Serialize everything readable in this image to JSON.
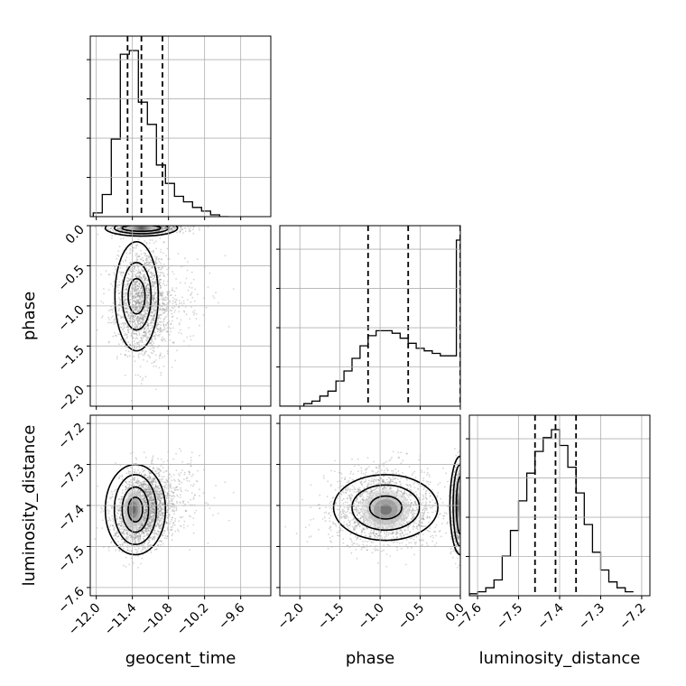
{
  "chart_data": {
    "type": "corner",
    "parameters": [
      "geocent_time",
      "phase",
      "luminosity_distance"
    ],
    "axis_labels": {
      "x": [
        "geocent_time",
        "phase",
        "luminosity_distance"
      ],
      "y": [
        "phase",
        "luminosity_distance"
      ]
    },
    "ranges": {
      "geocent_time": [
        -12.1,
        -9.1
      ],
      "phase": [
        -2.25,
        0.0
      ],
      "luminosity_distance": [
        -7.62,
        -7.18
      ]
    },
    "ticks": {
      "geocent_time": [
        -12.0,
        -11.4,
        -10.8,
        -10.2,
        -9.6
      ],
      "phase": [
        -2.0,
        -1.5,
        -1.0,
        -0.5,
        0.0
      ],
      "luminosity_distance": [
        -7.6,
        -7.5,
        -7.4,
        -7.3,
        -7.2
      ]
    },
    "tick_labels": {
      "geocent_time": [
        "−12.0",
        "−11.4",
        "−10.8",
        "−10.2",
        "−9.6"
      ],
      "phase": [
        "−2.0",
        "−1.5",
        "−1.0",
        "−0.5",
        "0.0"
      ],
      "luminosity_distance": [
        "−7.6",
        "−7.5",
        "−7.4",
        "−7.3",
        "−7.2"
      ]
    },
    "quantiles": {
      "geocent_time": [
        -11.48,
        -11.25,
        -10.9
      ],
      "phase": [
        -1.15,
        -0.65,
        0.0
      ],
      "luminosity_distance": [
        -7.46,
        -7.41,
        -7.36
      ]
    },
    "histograms": {
      "geocent_time": {
        "edges": [
          -12.05,
          -11.9,
          -11.75,
          -11.6,
          -11.45,
          -11.3,
          -11.15,
          -11.0,
          -10.85,
          -10.7,
          -10.55,
          -10.4,
          -10.25,
          -10.1,
          -9.95,
          -9.8
        ],
        "counts": [
          2,
          12,
          42,
          88,
          90,
          62,
          50,
          28,
          18,
          11,
          8,
          5,
          3,
          1,
          0
        ]
      },
      "phase": {
        "edges": [
          -2.25,
          -2.15,
          -2.05,
          -1.95,
          -1.85,
          -1.75,
          -1.65,
          -1.55,
          -1.45,
          -1.35,
          -1.25,
          -1.15,
          -1.05,
          -0.95,
          -0.85,
          -0.75,
          -0.65,
          -0.55,
          -0.45,
          -0.35,
          -0.25,
          -0.15,
          -0.05,
          0.0
        ],
        "counts": [
          0,
          0,
          0,
          1,
          2,
          4,
          6,
          10,
          14,
          19,
          24,
          28,
          30,
          30,
          29,
          27,
          25,
          23,
          22,
          21,
          20,
          20,
          66
        ]
      },
      "luminosity_distance": {
        "edges": [
          -7.62,
          -7.6,
          -7.58,
          -7.56,
          -7.54,
          -7.52,
          -7.5,
          -7.48,
          -7.46,
          -7.44,
          -7.42,
          -7.4,
          -7.38,
          -7.36,
          -7.34,
          -7.32,
          -7.3,
          -7.28,
          -7.26,
          -7.24,
          -7.22
        ],
        "counts": [
          1,
          2,
          4,
          8,
          20,
          33,
          48,
          62,
          73,
          80,
          84,
          76,
          65,
          52,
          36,
          22,
          13,
          7,
          4,
          2
        ]
      }
    },
    "grid": true
  }
}
